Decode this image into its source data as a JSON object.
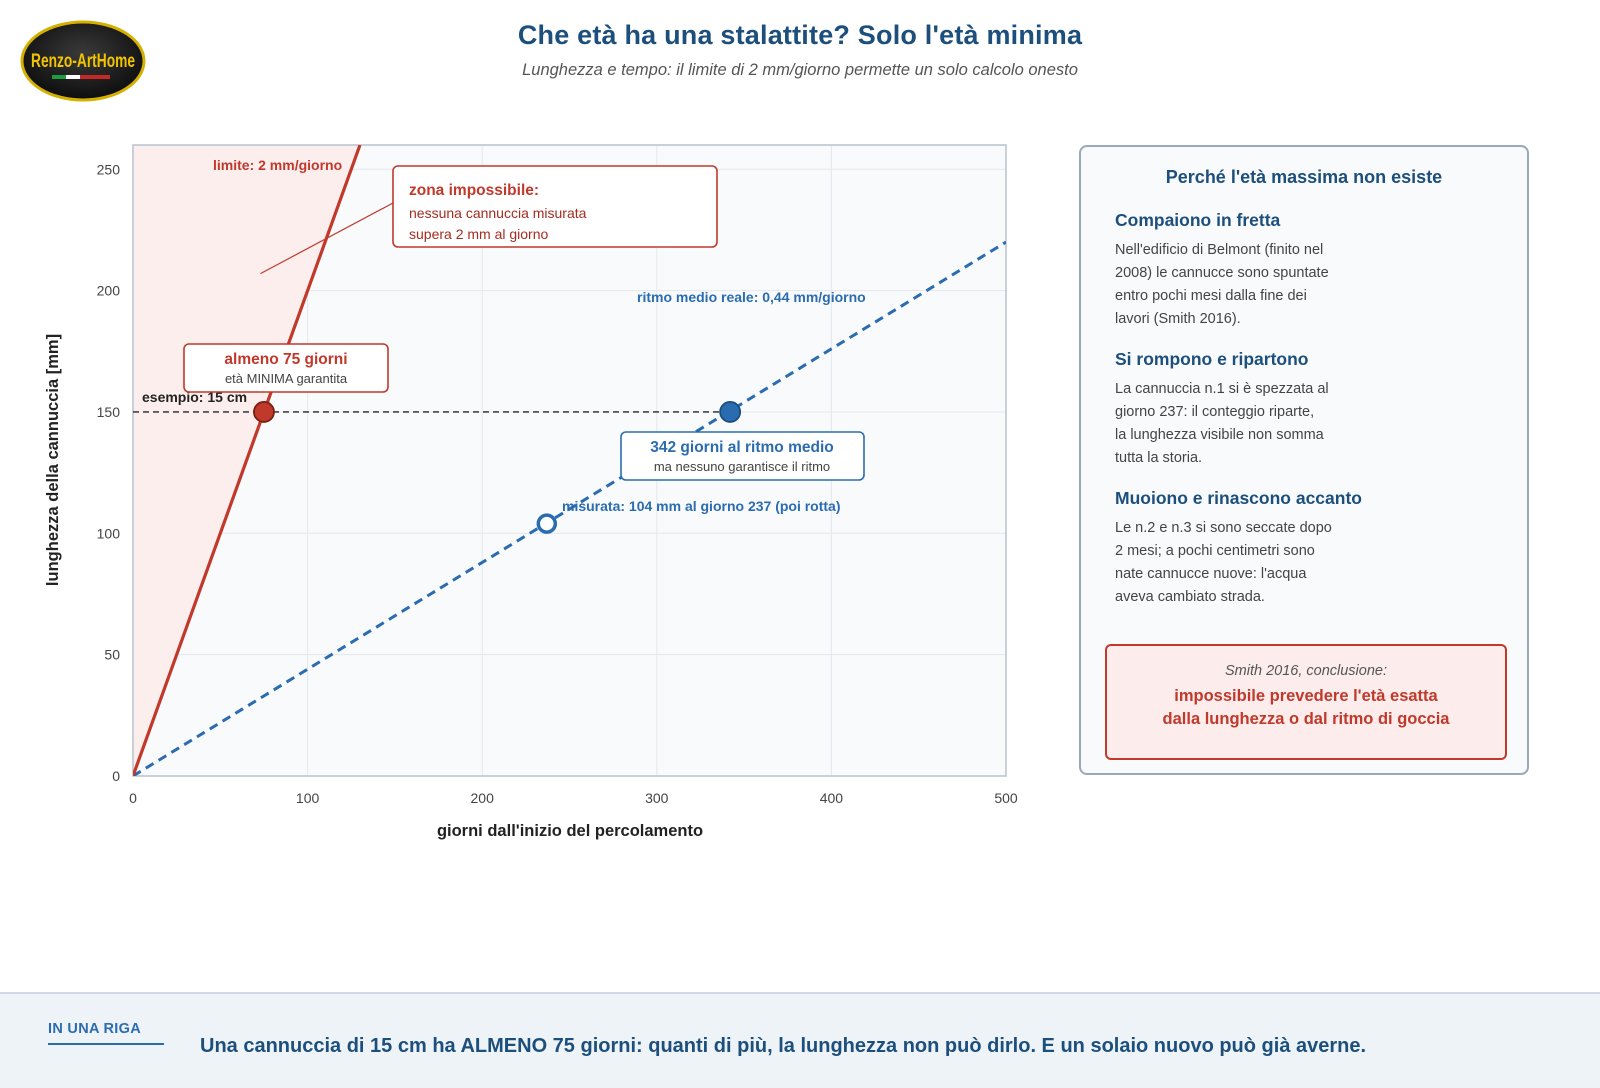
{
  "logo": {
    "text": "Renzo-ArtHome"
  },
  "header": {
    "title": "Che età ha una stalattite? Solo l'età minima",
    "subtitle": "Lunghezza e tempo: il limite di 2 mm/giorno permette un solo calcolo onesto"
  },
  "chart_data": {
    "type": "line",
    "xlabel": "giorni dall'inizio del percolamento",
    "ylabel": "lunghezza della cannuccia [mm]",
    "xlim": [
      0,
      500
    ],
    "ylim": [
      0,
      260
    ],
    "x_ticks": [
      0,
      100,
      200,
      300,
      400,
      500
    ],
    "y_ticks": [
      0,
      50,
      100,
      150,
      200,
      250
    ],
    "grid": true,
    "colors": {
      "limit": "#c0392b",
      "average": "#2b6cb0",
      "zone": "#fdecec"
    },
    "series": [
      {
        "name": "limite: 2 mm/giorno",
        "slope": 2,
        "x": [
          0,
          130
        ],
        "y": [
          0,
          260
        ],
        "style": "solid",
        "color": "#c0392b"
      },
      {
        "name": "ritmo medio reale: 0,44 mm/giorno",
        "slope": 0.44,
        "x": [
          0,
          500
        ],
        "y": [
          0,
          220
        ],
        "style": "dashed",
        "color": "#2b6cb0"
      }
    ],
    "reference_line": {
      "y": 150,
      "x_end": 342,
      "label": "esempio: 15 cm"
    },
    "points": [
      {
        "x": 75,
        "y": 150,
        "style": "filled",
        "color": "#c0392b"
      },
      {
        "x": 342,
        "y": 150,
        "style": "filled",
        "color": "#2b6cb0"
      },
      {
        "x": 237,
        "y": 104,
        "style": "hollow",
        "color": "#2b6cb0",
        "label": "misurata: 104 mm al giorno 237 (poi rotta)"
      }
    ],
    "annotations": {
      "impossible_title": "zona impossibile:",
      "impossible_line1": "nessuna cannuccia misurata",
      "impossible_line2": "supera 2 mm al giorno",
      "min_title": "almeno 75 giorni",
      "min_sub": "età MINIMA garantita",
      "avg_title": "342 giorni al ritmo medio",
      "avg_sub": "ma nessuno garantisce il ritmo"
    }
  },
  "panel": {
    "title": "Perché l'età massima non esiste",
    "sections": [
      {
        "heading": "Compaiono in fretta",
        "lines": [
          "Nell'edificio di Belmont (finito nel",
          "2008) le cannucce sono spuntate",
          "entro pochi mesi dalla fine dei",
          "lavori (Smith 2016)."
        ]
      },
      {
        "heading": "Si rompono e ripartono",
        "lines": [
          "La cannuccia n.1 si è spezzata al",
          "giorno 237: il conteggio riparte,",
          "la lunghezza visibile non somma",
          "tutta la storia."
        ]
      },
      {
        "heading": "Muoiono e rinascono accanto",
        "lines": [
          "Le n.2 e n.3 si sono seccate dopo",
          "2 mesi; a pochi centimetri sono",
          "nate cannucce nuove: l'acqua",
          "aveva cambiato strada."
        ]
      }
    ],
    "conclusion": {
      "label": "Smith 2016, conclusione:",
      "line1": "impossibile prevedere l'età esatta",
      "line2": "dalla lunghezza o dal ritmo di goccia"
    }
  },
  "footer": {
    "label": "IN UNA RIGA",
    "text": "Una cannuccia di 15 cm ha ALMENO 75 giorni: quanti di più, la lunghezza non può dirlo. E un solaio nuovo può già averne."
  }
}
